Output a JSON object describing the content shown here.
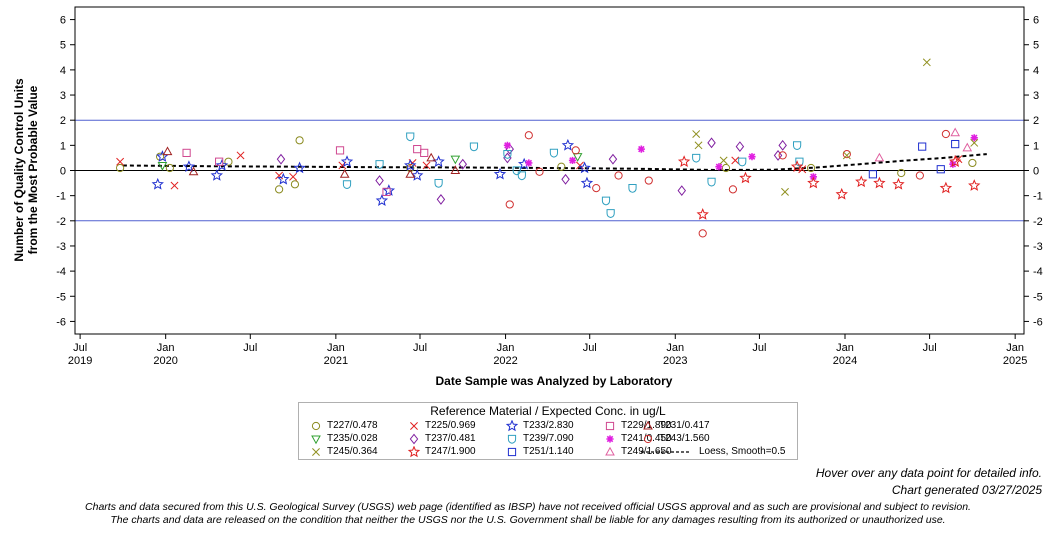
{
  "hover_note": "Hover over any data point for detailed info.",
  "generated_note": "Chart generated 03/27/2025",
  "disclaimer_line1": "Charts and data secured from this U.S. Geological Survey (USGS) web page (identified as IBSP) have not received official USGS approval and as such are provisional and subject to revision.",
  "disclaimer_line2": "The charts and data are released on the condition that neither the USGS nor the U.S. Government shall be liable for any damages resulting from its authorized or unauthorized use.",
  "chart_data": {
    "type": "scatter",
    "xlabel": "Date Sample was Analyzed by Laboratory",
    "ylabel_line1": "Number of Quality Control Units",
    "ylabel_line2": "from the Most Probable Value",
    "xlim": [
      "2019-06-20",
      "2025-01-20"
    ],
    "ylim": [
      -6.5,
      6.5
    ],
    "y_ticks": [
      -6,
      -5,
      -4,
      -3,
      -2,
      -1,
      0,
      1,
      2,
      3,
      4,
      5,
      6
    ],
    "x_ticks": [
      {
        "date": "2019-07-01",
        "label": "Jul",
        "year": "2019"
      },
      {
        "date": "2020-01-01",
        "label": "Jan",
        "year": "2020"
      },
      {
        "date": "2020-07-01",
        "label": "Jul",
        "year": ""
      },
      {
        "date": "2021-01-01",
        "label": "Jan",
        "year": "2021"
      },
      {
        "date": "2021-07-01",
        "label": "Jul",
        "year": ""
      },
      {
        "date": "2022-01-01",
        "label": "Jan",
        "year": "2022"
      },
      {
        "date": "2022-07-01",
        "label": "Jul",
        "year": ""
      },
      {
        "date": "2023-01-01",
        "label": "Jan",
        "year": "2023"
      },
      {
        "date": "2023-07-01",
        "label": "Jul",
        "year": ""
      },
      {
        "date": "2024-01-01",
        "label": "Jan",
        "year": "2024"
      },
      {
        "date": "2024-07-01",
        "label": "Jul",
        "year": ""
      },
      {
        "date": "2025-01-01",
        "label": "Jan",
        "year": "2025"
      }
    ],
    "reference_lines": [
      {
        "y": 2,
        "color": "#5060d0"
      },
      {
        "y": -2,
        "color": "#5060d0"
      },
      {
        "y": 0,
        "color": "#000000"
      }
    ],
    "legend": {
      "title": "Reference Material / Expected Conc. in ug/L",
      "placement": "bottom-center"
    },
    "loess": {
      "name": "Loess, Smooth=0.5",
      "points": [
        [
          "2019-10-01",
          0.2
        ],
        [
          "2020-04-01",
          0.17
        ],
        [
          "2020-10-01",
          0.15
        ],
        [
          "2021-04-01",
          0.13
        ],
        [
          "2021-10-01",
          0.12
        ],
        [
          "2022-04-01",
          0.1
        ],
        [
          "2022-10-01",
          0.07
        ],
        [
          "2023-04-01",
          0.02
        ],
        [
          "2023-08-01",
          0.03
        ],
        [
          "2023-11-01",
          0.12
        ],
        [
          "2024-02-01",
          0.25
        ],
        [
          "2024-05-01",
          0.38
        ],
        [
          "2024-08-01",
          0.5
        ],
        [
          "2024-11-01",
          0.65
        ]
      ]
    },
    "series": [
      {
        "name": "T227/0.478",
        "marker": "circle",
        "color": "#8a8a1e",
        "points": [
          [
            "2019-09-25",
            0.1
          ],
          [
            "2019-12-20",
            0.55
          ],
          [
            "2020-01-10",
            0.1
          ],
          [
            "2020-05-15",
            0.35
          ],
          [
            "2020-09-01",
            -0.75
          ],
          [
            "2020-10-05",
            -0.55
          ],
          [
            "2020-10-15",
            1.2
          ],
          [
            "2021-06-10",
            0.1
          ],
          [
            "2022-05-01",
            0.15
          ],
          [
            "2023-04-20",
            0.1
          ],
          [
            "2023-10-20",
            0.1
          ],
          [
            "2024-05-01",
            -0.1
          ],
          [
            "2024-10-01",
            0.3
          ]
        ]
      },
      {
        "name": "T225/0.969",
        "marker": "x",
        "color": "#e02020",
        "points": [
          [
            "2019-09-25",
            0.35
          ],
          [
            "2020-01-20",
            -0.6
          ],
          [
            "2020-06-10",
            0.6
          ],
          [
            "2020-09-01",
            -0.2
          ],
          [
            "2020-10-01",
            -0.25
          ],
          [
            "2021-01-15",
            0.2
          ],
          [
            "2021-06-15",
            0.3
          ],
          [
            "2021-07-15",
            0.2
          ],
          [
            "2022-06-10",
            0.2
          ],
          [
            "2023-05-10",
            0.4
          ],
          [
            "2023-10-01",
            0.05
          ],
          [
            "2024-09-01",
            0.45
          ]
        ]
      },
      {
        "name": "T233/2.830",
        "marker": "star",
        "color": "#2030d0",
        "points": [
          [
            "2019-12-15",
            -0.55
          ],
          [
            "2019-12-25",
            0.55
          ],
          [
            "2020-02-20",
            0.15
          ],
          [
            "2020-04-20",
            -0.2
          ],
          [
            "2020-05-01",
            0.2
          ],
          [
            "2020-09-10",
            -0.35
          ],
          [
            "2020-10-15",
            0.1
          ],
          [
            "2021-01-25",
            0.35
          ],
          [
            "2021-04-10",
            -1.2
          ],
          [
            "2021-04-25",
            -0.8
          ],
          [
            "2021-06-10",
            0.2
          ],
          [
            "2021-06-25",
            -0.2
          ],
          [
            "2021-08-10",
            0.35
          ],
          [
            "2021-12-20",
            -0.15
          ],
          [
            "2022-02-10",
            0.25
          ],
          [
            "2022-05-15",
            1.0
          ],
          [
            "2022-06-20",
            0.1
          ],
          [
            "2022-06-25",
            -0.5
          ]
        ]
      },
      {
        "name": "T229/1.890",
        "marker": "square",
        "color": "#d04890",
        "points": [
          [
            "2020-02-15",
            0.7
          ],
          [
            "2020-04-25",
            0.35
          ],
          [
            "2021-01-10",
            0.8
          ],
          [
            "2021-04-20",
            -0.85
          ],
          [
            "2021-06-25",
            0.85
          ],
          [
            "2021-07-10",
            0.7
          ]
        ]
      },
      {
        "name": "T231/0.417",
        "marker": "triangle",
        "color": "#a02020",
        "points": [
          [
            "2020-01-05",
            0.75
          ],
          [
            "2020-03-01",
            -0.05
          ],
          [
            "2021-01-20",
            -0.15
          ],
          [
            "2021-06-10",
            -0.15
          ],
          [
            "2021-07-25",
            0.5
          ],
          [
            "2021-09-15",
            0.0
          ]
        ]
      },
      {
        "name": "T235/0.028",
        "marker": "triangledown",
        "color": "#30a030",
        "points": [
          [
            "2019-12-25",
            0.2
          ],
          [
            "2021-09-15",
            0.45
          ],
          [
            "2022-06-05",
            0.55
          ]
        ]
      },
      {
        "name": "T237/0.481",
        "marker": "diamond",
        "color": "#8020a0",
        "points": [
          [
            "2020-09-05",
            0.45
          ],
          [
            "2021-04-05",
            -0.4
          ],
          [
            "2021-08-15",
            -1.15
          ],
          [
            "2021-10-01",
            0.25
          ],
          [
            "2022-01-05",
            0.5
          ],
          [
            "2022-01-10",
            0.85
          ],
          [
            "2022-05-10",
            -0.35
          ],
          [
            "2022-08-20",
            0.45
          ],
          [
            "2023-01-15",
            -0.8
          ],
          [
            "2023-03-20",
            1.1
          ],
          [
            "2023-05-20",
            0.95
          ],
          [
            "2023-08-10",
            0.6
          ],
          [
            "2023-08-20",
            1.0
          ]
        ]
      },
      {
        "name": "T239/7.090",
        "marker": "shield",
        "color": "#30a0c0",
        "points": [
          [
            "2021-01-25",
            -0.55
          ],
          [
            "2021-04-05",
            0.25
          ],
          [
            "2021-06-10",
            1.35
          ],
          [
            "2021-08-10",
            -0.5
          ],
          [
            "2021-10-25",
            0.95
          ],
          [
            "2022-01-05",
            0.65
          ],
          [
            "2022-01-25",
            0.0
          ],
          [
            "2022-02-05",
            -0.2
          ],
          [
            "2022-04-15",
            0.7
          ],
          [
            "2022-08-05",
            -1.2
          ],
          [
            "2022-08-15",
            -1.7
          ],
          [
            "2022-10-01",
            -0.7
          ],
          [
            "2023-02-15",
            0.5
          ],
          [
            "2023-03-20",
            -0.45
          ],
          [
            "2023-05-25",
            0.35
          ],
          [
            "2023-09-20",
            1.0
          ],
          [
            "2023-09-25",
            0.35
          ]
        ]
      },
      {
        "name": "T241/0.450",
        "marker": "asterisk",
        "color": "#e020e0",
        "points": [
          [
            "2022-01-05",
            1.0
          ],
          [
            "2022-02-20",
            0.3
          ],
          [
            "2022-05-25",
            0.4
          ],
          [
            "2022-10-20",
            0.85
          ],
          [
            "2023-04-05",
            0.15
          ],
          [
            "2023-06-15",
            0.55
          ],
          [
            "2023-10-25",
            -0.25
          ],
          [
            "2024-08-20",
            0.25
          ],
          [
            "2024-10-05",
            1.3
          ]
        ]
      },
      {
        "name": "T243/1.560",
        "marker": "circle",
        "color": "#d03030",
        "points": [
          [
            "2022-01-10",
            -1.35
          ],
          [
            "2022-02-20",
            1.4
          ],
          [
            "2022-03-15",
            -0.05
          ],
          [
            "2022-06-01",
            0.8
          ],
          [
            "2022-07-15",
            -0.7
          ],
          [
            "2022-09-01",
            -0.2
          ],
          [
            "2022-11-05",
            -0.4
          ],
          [
            "2023-03-01",
            -2.5
          ],
          [
            "2023-05-05",
            -0.75
          ],
          [
            "2023-08-20",
            0.6
          ],
          [
            "2024-01-05",
            0.65
          ],
          [
            "2024-06-10",
            -0.2
          ],
          [
            "2024-08-05",
            1.45
          ]
        ]
      },
      {
        "name": "T245/0.364",
        "marker": "x",
        "color": "#909020",
        "points": [
          [
            "2023-02-15",
            1.45
          ],
          [
            "2023-02-20",
            1.0
          ],
          [
            "2023-04-15",
            0.4
          ],
          [
            "2023-08-25",
            -0.85
          ],
          [
            "2024-01-05",
            0.6
          ],
          [
            "2024-06-25",
            4.3
          ],
          [
            "2024-10-05",
            1.1
          ]
        ]
      },
      {
        "name": "T247/1.900",
        "marker": "star",
        "color": "#e02020",
        "points": [
          [
            "2023-01-20",
            0.35
          ],
          [
            "2023-03-01",
            -1.75
          ],
          [
            "2023-06-01",
            -0.3
          ],
          [
            "2023-09-20",
            0.15
          ],
          [
            "2023-10-25",
            -0.5
          ],
          [
            "2023-12-25",
            -0.95
          ],
          [
            "2024-02-05",
            -0.45
          ],
          [
            "2024-03-15",
            -0.5
          ],
          [
            "2024-04-25",
            -0.55
          ],
          [
            "2024-08-05",
            -0.7
          ],
          [
            "2024-08-25",
            0.35
          ],
          [
            "2024-10-05",
            -0.6
          ]
        ]
      },
      {
        "name": "T251/1.140",
        "marker": "square",
        "color": "#2030d0",
        "points": [
          [
            "2024-03-01",
            -0.15
          ],
          [
            "2024-06-15",
            0.95
          ],
          [
            "2024-07-25",
            0.05
          ],
          [
            "2024-08-25",
            1.05
          ]
        ]
      },
      {
        "name": "T249/1.650",
        "marker": "triangle",
        "color": "#e060a0",
        "points": [
          [
            "2024-03-15",
            0.5
          ],
          [
            "2024-08-25",
            1.5
          ],
          [
            "2024-09-20",
            0.9
          ]
        ]
      }
    ]
  }
}
